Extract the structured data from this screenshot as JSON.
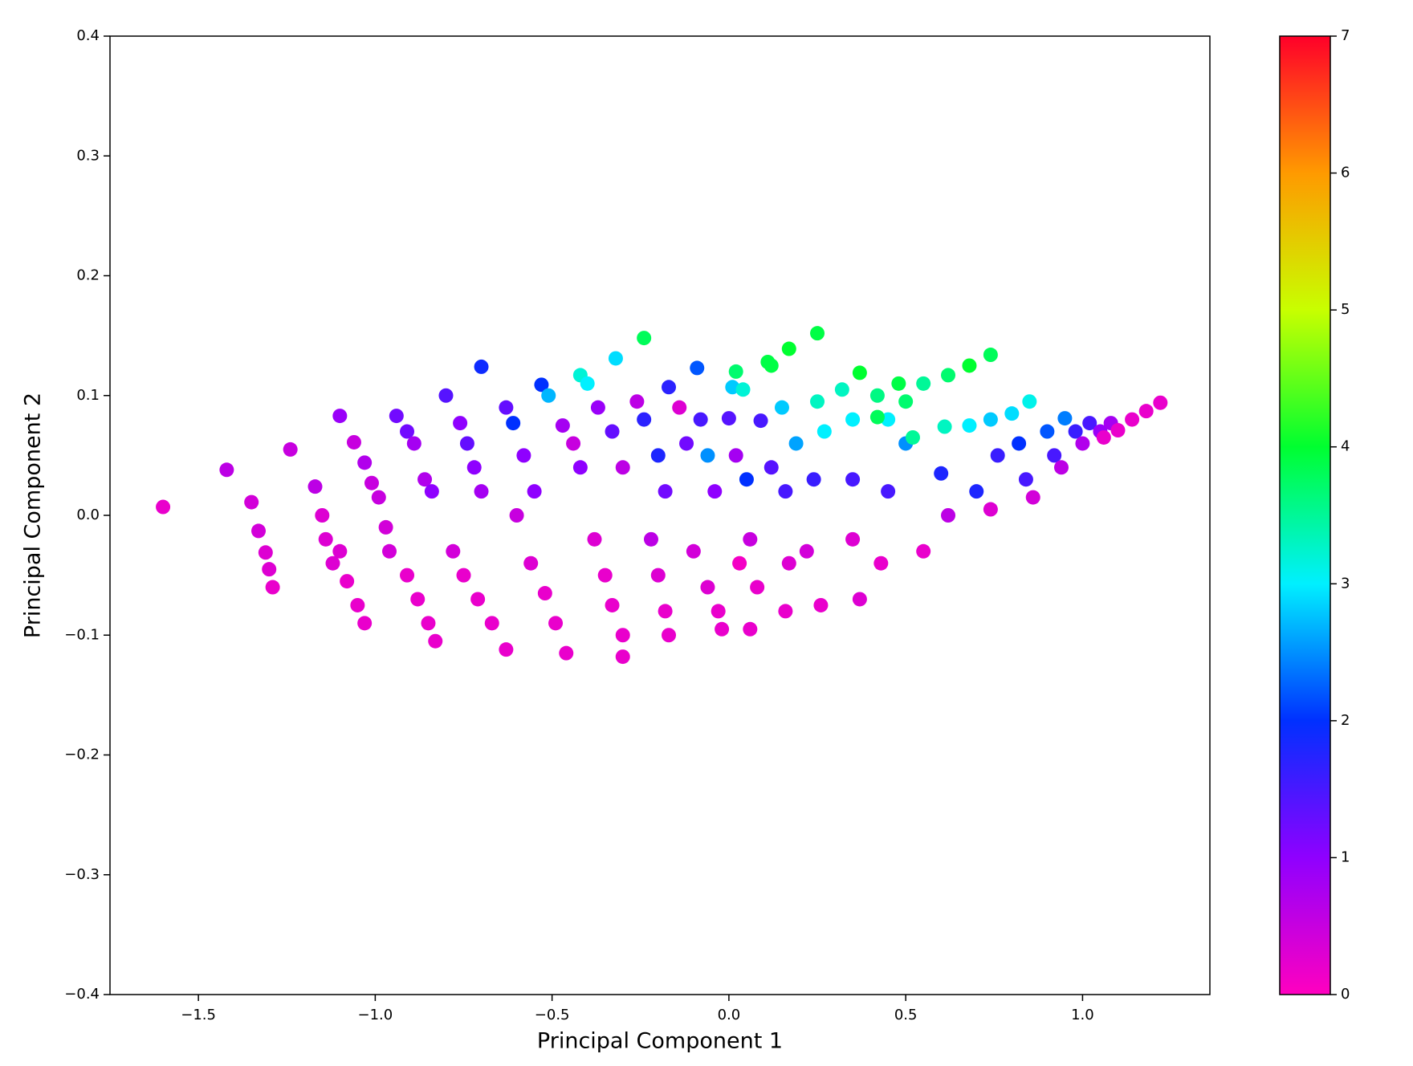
{
  "chart_data": {
    "type": "scatter",
    "xlabel": "Principal Component 1",
    "ylabel": "Principal Component 2",
    "xlim": [
      -1.75,
      1.36
    ],
    "ylim": [
      -0.4,
      0.4
    ],
    "xticks": [
      {
        "value": -1.5,
        "label": "−1.5"
      },
      {
        "value": -1.0,
        "label": "−1.0"
      },
      {
        "value": -0.5,
        "label": "−0.5"
      },
      {
        "value": 0,
        "label": "0.0"
      },
      0.5,
      {
        "value": 1.0,
        "label": "1.0"
      }
    ],
    "yticks": [
      {
        "value": -0.4,
        "label": "−0.4"
      },
      {
        "value": -0.3,
        "label": "−0.3"
      },
      {
        "value": -0.2,
        "label": "−0.2"
      },
      {
        "value": -0.1,
        "label": "−0.1"
      },
      {
        "value": 0,
        "label": "0.0"
      },
      0.1,
      0.2,
      0.3,
      0.4
    ],
    "colorbar": {
      "clim": [
        0,
        7
      ],
      "ticks": [
        0,
        1,
        2,
        3,
        4,
        5,
        6,
        7
      ],
      "colormap": [
        "#ff00bf",
        "#8f00ff",
        "#0030ff",
        "#00f0ff",
        "#00ff30",
        "#c8ff00",
        "#ff9a00",
        "#ff0029"
      ]
    },
    "x": [
      -1.6,
      -1.42,
      -1.35,
      -1.33,
      -1.31,
      -1.3,
      -1.29,
      -1.24,
      -1.17,
      -1.15,
      -1.14,
      -1.12,
      -1.1,
      -1.06,
      -1.03,
      -1.01,
      -1.1,
      -1.08,
      -1.05,
      -1.03,
      -0.99,
      -0.97,
      -0.94,
      -0.91,
      -0.89,
      -0.96,
      -0.91,
      -0.88,
      -0.85,
      -0.83,
      -0.8,
      -0.86,
      -0.84,
      -0.76,
      -0.74,
      -0.72,
      -0.7,
      -0.78,
      -0.75,
      -0.71,
      -0.67,
      -0.63,
      -0.7,
      -0.63,
      -0.61,
      -0.58,
      -0.55,
      -0.6,
      -0.56,
      -0.52,
      -0.49,
      -0.46,
      -0.53,
      -0.51,
      -0.47,
      -0.44,
      -0.42,
      -0.42,
      -0.4,
      -0.37,
      -0.33,
      -0.3,
      -0.38,
      -0.35,
      -0.33,
      -0.3,
      -0.3,
      -0.32,
      -0.24,
      -0.26,
      -0.24,
      -0.2,
      -0.18,
      -0.22,
      -0.2,
      -0.18,
      -0.17,
      -0.17,
      -0.14,
      -0.12,
      -0.09,
      -0.08,
      -0.06,
      -0.04,
      -0.1,
      -0.06,
      -0.03,
      -0.02,
      0.01,
      0.0,
      0.02,
      0.04,
      0.02,
      0.05,
      0.06,
      0.03,
      0.08,
      0.06,
      0.09,
      0.11,
      0.12,
      0.15,
      0.17,
      0.12,
      0.16,
      0.17,
      0.16,
      0.19,
      0.25,
      0.25,
      0.27,
      0.24,
      0.22,
      0.26,
      0.32,
      0.35,
      0.37,
      0.35,
      0.35,
      0.37,
      0.42,
      0.45,
      0.42,
      0.48,
      0.5,
      0.45,
      0.43,
      0.5,
      0.52,
      0.55,
      0.6,
      0.55,
      0.62,
      0.61,
      0.62,
      0.68,
      0.68,
      0.7,
      0.74,
      0.74,
      0.76,
      0.74,
      0.8,
      0.82,
      0.85,
      0.84,
      0.86,
      0.9,
      0.92,
      0.94,
      0.95,
      0.98,
      1.0,
      1.02,
      1.05,
      1.06,
      1.08,
      1.1,
      1.14,
      1.18,
      1.22
    ],
    "y": [
      0.007,
      0.038,
      0.011,
      -0.013,
      -0.031,
      -0.045,
      -0.06,
      0.055,
      0.024,
      0.0,
      -0.02,
      -0.04,
      0.083,
      0.061,
      0.044,
      0.027,
      -0.03,
      -0.055,
      -0.075,
      -0.09,
      0.015,
      -0.01,
      0.083,
      0.07,
      0.06,
      -0.03,
      -0.05,
      -0.07,
      -0.09,
      -0.105,
      0.1,
      0.03,
      0.02,
      0.077,
      0.06,
      0.04,
      0.02,
      -0.03,
      -0.05,
      -0.07,
      -0.09,
      -0.112,
      0.124,
      0.09,
      0.077,
      0.05,
      0.02,
      0.0,
      -0.04,
      -0.065,
      -0.09,
      -0.115,
      0.109,
      0.1,
      0.075,
      0.06,
      0.04,
      0.117,
      0.11,
      0.09,
      0.07,
      0.04,
      -0.02,
      -0.05,
      -0.075,
      -0.1,
      -0.118,
      0.131,
      0.148,
      0.095,
      0.08,
      0.05,
      0.02,
      -0.02,
      -0.05,
      -0.08,
      -0.1,
      0.107,
      0.09,
      0.06,
      0.123,
      0.08,
      0.05,
      0.02,
      -0.03,
      -0.06,
      -0.08,
      -0.095,
      0.107,
      0.081,
      0.12,
      0.105,
      0.05,
      0.03,
      -0.02,
      -0.04,
      -0.06,
      -0.095,
      0.079,
      0.128,
      0.125,
      0.09,
      0.139,
      0.04,
      0.02,
      -0.04,
      -0.08,
      0.06,
      0.152,
      0.095,
      0.07,
      0.03,
      -0.03,
      -0.075,
      0.105,
      0.08,
      0.119,
      0.03,
      -0.02,
      -0.07,
      0.1,
      0.08,
      0.082,
      0.11,
      0.095,
      0.02,
      -0.04,
      0.06,
      0.065,
      0.11,
      0.035,
      -0.03,
      0.117,
      0.074,
      0.0,
      0.125,
      0.075,
      0.02,
      0.134,
      0.08,
      0.05,
      0.005,
      0.085,
      0.06,
      0.095,
      0.03,
      0.015,
      0.07,
      0.05,
      0.04,
      0.081,
      0.07,
      0.06,
      0.077,
      0.07,
      0.065,
      0.077,
      0.071,
      0.08,
      0.087,
      0.094
    ],
    "c": [
      0.2,
      0.6,
      0.4,
      0.4,
      0.3,
      0.3,
      0.2,
      0.5,
      0.6,
      0.3,
      0.3,
      0.3,
      0.9,
      0.5,
      0.7,
      0.5,
      0.3,
      0.2,
      0.2,
      0.2,
      0.5,
      0.4,
      1.2,
      1.2,
      0.8,
      0.4,
      0.2,
      0.2,
      0.2,
      0.2,
      1.4,
      0.7,
      1.0,
      1.0,
      1.3,
      1.0,
      0.8,
      0.4,
      0.2,
      0.2,
      0.2,
      0.2,
      1.9,
      1.3,
      2.0,
      1.0,
      1.0,
      0.5,
      0.3,
      0.2,
      0.2,
      0.2,
      2.0,
      2.7,
      0.8,
      0.5,
      1.0,
      3.2,
      3.0,
      0.9,
      1.3,
      0.6,
      0.3,
      0.2,
      0.2,
      0.2,
      0.2,
      2.9,
      3.8,
      0.6,
      1.7,
      1.8,
      1.2,
      0.6,
      0.3,
      0.2,
      0.2,
      1.7,
      0.3,
      1.2,
      2.2,
      1.5,
      2.5,
      1.0,
      0.4,
      0.3,
      0.2,
      0.2,
      2.8,
      1.4,
      3.7,
      3.2,
      0.8,
      2.0,
      0.5,
      0.1,
      0.2,
      0.2,
      1.5,
      3.9,
      3.9,
      2.8,
      4.0,
      1.4,
      1.5,
      0.3,
      0.2,
      2.6,
      3.9,
      3.3,
      3.0,
      1.6,
      0.4,
      0.2,
      3.3,
      3.0,
      4.0,
      1.5,
      0.3,
      0.3,
      3.6,
      3.0,
      3.8,
      3.9,
      3.7,
      1.5,
      0.2,
      2.5,
      3.5,
      3.5,
      1.8,
      0.2,
      3.7,
      3.3,
      0.6,
      4.0,
      3.0,
      1.8,
      3.8,
      2.8,
      1.6,
      0.3,
      2.9,
      2.0,
      3.1,
      1.5,
      0.4,
      2.2,
      1.5,
      0.6,
      2.4,
      1.6,
      0.7,
      1.5,
      0.9,
      0.2,
      0.8,
      0.2,
      0.2,
      0.2,
      0.2
    ]
  }
}
